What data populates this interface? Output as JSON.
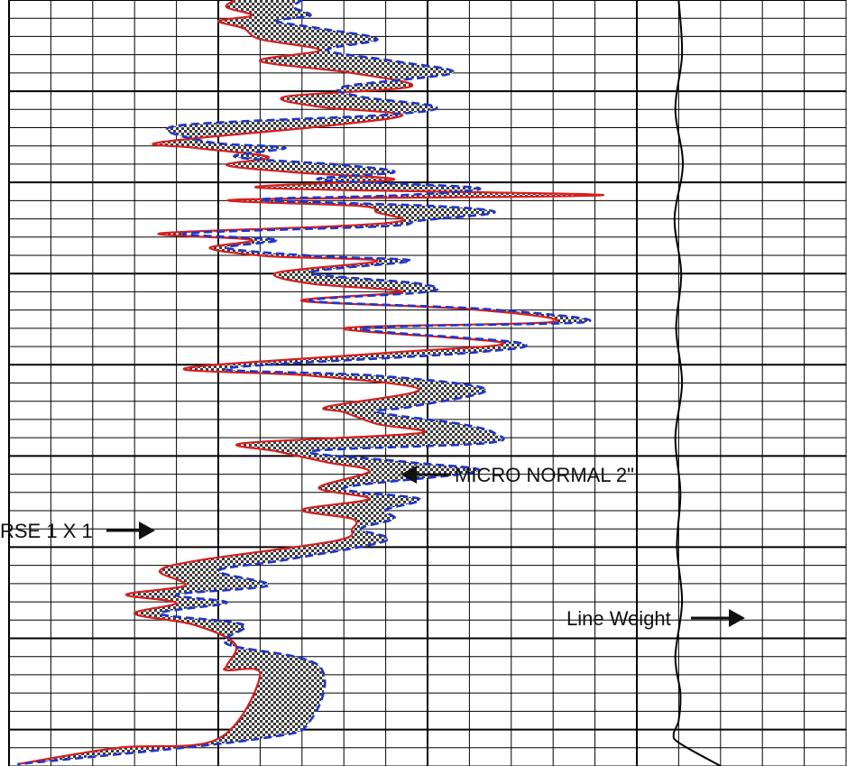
{
  "colors": {
    "background": "#ffffff",
    "grid": "#000000",
    "inverse_curve": "#d81e1e",
    "normal_curve": "#1f35c9",
    "fill_dark": "#3a3a3a",
    "fill_light": "#ffffff",
    "line_weight_trace": "#000000",
    "annotation": "#111111"
  },
  "annotations": {
    "micro_normal": "MICRO NORMAL 2\"",
    "micro_inverse": "RSE 1 X 1",
    "line_weight": "Line Weight"
  },
  "chart_data": {
    "type": "line",
    "title": "",
    "xlabel": "",
    "ylabel": "",
    "grid": true,
    "series": [
      {
        "name": "MICRO NORMAL 2\"",
        "color": "#1f35c9",
        "style": "dashed",
        "x": [
          35,
          34,
          36,
          32,
          37,
          44,
          38,
          46,
          53,
          40,
          42,
          51,
          45,
          20,
          24,
          33,
          27,
          40,
          46,
          37,
          56,
          47,
          30,
          51,
          58,
          49,
          45,
          21,
          32,
          26,
          37,
          48,
          36,
          49,
          50,
          36,
          57,
          69,
          42,
          61,
          55,
          26,
          44,
          57,
          48,
          44,
          54,
          58,
          57,
          36,
          48,
          56,
          40,
          49,
          45,
          46,
          42,
          45,
          33,
          25,
          31,
          20,
          26,
          18,
          28,
          26,
          37,
          36,
          30,
          1
        ],
        "y": [
          0.0,
          0.8,
          1.7,
          2.3,
          3.1,
          4.3,
          5.5,
          6.7,
          8.0,
          9.5,
          10.6,
          11.7,
          12.6,
          13.8,
          15.6,
          16.2,
          17.2,
          18.1,
          18.9,
          19.7,
          20.6,
          21.4,
          21.9,
          22.6,
          23.3,
          24.2,
          24.8,
          25.6,
          26.3,
          27.2,
          28.1,
          28.6,
          29.9,
          31.1,
          32.0,
          33.0,
          33.9,
          35.3,
          36.0,
          37.6,
          38.7,
          40.4,
          41.2,
          42.7,
          44.6,
          45.2,
          46.5,
          47.5,
          48.6,
          49.5,
          50.7,
          51.7,
          53.5,
          54.7,
          55.9,
          56.9,
          58.0,
          59.3,
          61.4,
          62.6,
          64.2,
          65.2,
          66.1,
          67.3,
          68.5,
          70.6,
          73.0,
          79.0,
          81.0,
          83.8
        ]
      },
      {
        "name": "RSE 1 X 1",
        "color": "#d81e1e",
        "style": "solid",
        "x": [
          27,
          26,
          29,
          25,
          28,
          30,
          37,
          30,
          41,
          48,
          33,
          37,
          47,
          38,
          18,
          22,
          31,
          26,
          34,
          46,
          30,
          71,
          27,
          42,
          44,
          47,
          39,
          18,
          29,
          24,
          31,
          44,
          32,
          36,
          47,
          35,
          55,
          65,
          40,
          59,
          45,
          21,
          36,
          49,
          38,
          40,
          44,
          49,
          28,
          32,
          38,
          43,
          37,
          43,
          35,
          41,
          41,
          39,
          23,
          18,
          21,
          14,
          20,
          15,
          22,
          27,
          26,
          26,
          30,
          25,
          13,
          1
        ],
        "y": [
          0.0,
          0.8,
          1.7,
          2.3,
          3.1,
          4.3,
          5.5,
          6.7,
          8.0,
          9.5,
          10.6,
          11.7,
          12.6,
          13.8,
          15.6,
          16.2,
          17.2,
          18.1,
          18.9,
          19.7,
          20.6,
          21.4,
          21.9,
          22.6,
          23.3,
          24.2,
          24.8,
          25.6,
          26.3,
          27.2,
          28.1,
          28.6,
          29.9,
          31.1,
          32.0,
          33.0,
          33.9,
          35.3,
          36.0,
          37.6,
          38.7,
          40.4,
          41.2,
          42.7,
          44.6,
          45.2,
          46.5,
          47.5,
          48.6,
          49.5,
          50.7,
          51.7,
          53.5,
          54.7,
          55.9,
          56.9,
          58.0,
          59.3,
          61.4,
          62.6,
          64.2,
          65.2,
          66.1,
          67.3,
          68.5,
          70.6,
          73.0,
          73.5,
          74.0,
          81.0,
          82.0,
          83.8
        ]
      },
      {
        "name": "Line Weight",
        "color": "#000000",
        "style": "solid",
        "x": [
          80,
          80.4,
          79.6,
          80.5,
          79.5,
          80.3,
          79.7,
          80.4,
          79.6,
          80.2,
          79.8,
          80.4,
          79.6,
          80.2,
          80,
          79.4,
          80.1,
          85
        ],
        "y": [
          0,
          6,
          12,
          18,
          24,
          30,
          36,
          42,
          48,
          54,
          60,
          66,
          72,
          76,
          79,
          80.5,
          81.5,
          84
        ]
      }
    ],
    "fill_between": {
      "series": [
        "MICRO NORMAL 2\"",
        "RSE 1 X 1"
      ],
      "pattern": "checkerboard"
    },
    "xlim": [
      0,
      100
    ],
    "ylim": [
      84,
      0
    ]
  }
}
